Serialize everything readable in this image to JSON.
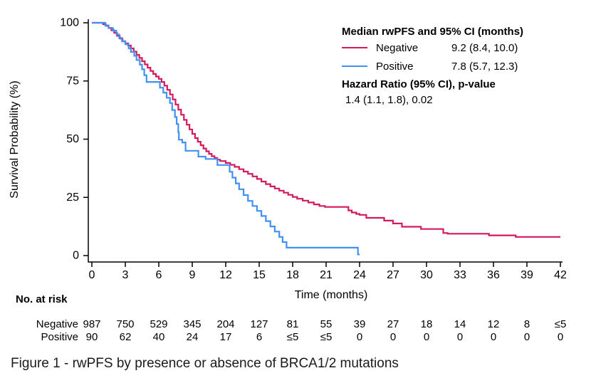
{
  "figure": {
    "caption": "Figure 1 - rwPFS by presence or absence of BRCA1/2 mutations"
  },
  "chart_data": {
    "type": "line",
    "subtype": "kaplan-meier-step-curve",
    "title": "",
    "xlabel": "Time (months)",
    "ylabel": "Survival Probability (%)",
    "xlim": [
      0,
      42
    ],
    "ylim": [
      0,
      100
    ],
    "xticks": [
      0,
      3,
      6,
      9,
      12,
      15,
      18,
      21,
      24,
      27,
      30,
      33,
      36,
      39,
      42
    ],
    "yticks": [
      0,
      25,
      50,
      75,
      100
    ],
    "grid": false,
    "legend_position": "top-right",
    "legend": {
      "title": "Median rwPFS and 95% CI (months)",
      "hr_title": "Hazard Ratio (95% CI), p-value",
      "hr_value": "1.4 (1.1, 1.8), 0.02"
    },
    "series": [
      {
        "name": "Negative",
        "median_ci": "9.2 (8.4, 10.0)",
        "color": "#D5195F",
        "end_time": 42,
        "points": [
          [
            0,
            100
          ],
          [
            1,
            99.4
          ],
          [
            1.25,
            98.7
          ],
          [
            1.5,
            97.8
          ],
          [
            1.75,
            96.8
          ],
          [
            2,
            95.7
          ],
          [
            2.25,
            94.4
          ],
          [
            2.5,
            93.2
          ],
          [
            2.75,
            92.1
          ],
          [
            3,
            91.2
          ],
          [
            3.25,
            90.2
          ],
          [
            3.5,
            89
          ],
          [
            3.75,
            87.6
          ],
          [
            4,
            86.2
          ],
          [
            4.25,
            84.9
          ],
          [
            4.5,
            83.5
          ],
          [
            4.75,
            82.1
          ],
          [
            5,
            80.7
          ],
          [
            5.25,
            79.3
          ],
          [
            5.5,
            78
          ],
          [
            5.75,
            76.9
          ],
          [
            6,
            75.9
          ],
          [
            6.25,
            74.6
          ],
          [
            6.5,
            73
          ],
          [
            6.75,
            71.2
          ],
          [
            7,
            69.2
          ],
          [
            7.25,
            67.1
          ],
          [
            7.5,
            64.9
          ],
          [
            7.75,
            62.7
          ],
          [
            8,
            60.5
          ],
          [
            8.25,
            58.3
          ],
          [
            8.5,
            56.2
          ],
          [
            8.75,
            54.2
          ],
          [
            9,
            52.3
          ],
          [
            9.25,
            50.5
          ],
          [
            9.5,
            48.9
          ],
          [
            9.75,
            47.4
          ],
          [
            10,
            46
          ],
          [
            10.25,
            44.8
          ],
          [
            10.5,
            43.7
          ],
          [
            10.75,
            42.7
          ],
          [
            11,
            41.9
          ],
          [
            11.25,
            41.2
          ],
          [
            11.5,
            40.6
          ],
          [
            12,
            39.8
          ],
          [
            12.4,
            39
          ],
          [
            12.8,
            38.1
          ],
          [
            13.2,
            37.1
          ],
          [
            13.6,
            36.1
          ],
          [
            14,
            35.1
          ],
          [
            14.4,
            34
          ],
          [
            14.8,
            32.9
          ],
          [
            15.2,
            31.8
          ],
          [
            15.6,
            30.7
          ],
          [
            16,
            29.7
          ],
          [
            16.4,
            28.8
          ],
          [
            16.8,
            27.9
          ],
          [
            17.2,
            27
          ],
          [
            17.6,
            26.1
          ],
          [
            18,
            25.2
          ],
          [
            18.4,
            24.4
          ],
          [
            18.9,
            23.6
          ],
          [
            19.4,
            22.8
          ],
          [
            19.9,
            22
          ],
          [
            20.4,
            21.3
          ],
          [
            20.9,
            20.9
          ],
          [
            23,
            19.4
          ],
          [
            23.3,
            18.5
          ],
          [
            23.7,
            17.9
          ],
          [
            24,
            17.5
          ],
          [
            24.6,
            16.2
          ],
          [
            26.2,
            15
          ],
          [
            27,
            13.8
          ],
          [
            27.8,
            12.4
          ],
          [
            29.5,
            11.4
          ],
          [
            31.5,
            9.7
          ],
          [
            31.9,
            9.4
          ],
          [
            35.6,
            8.7
          ],
          [
            38,
            8
          ]
        ]
      },
      {
        "name": "Positive",
        "median_ci": "7.8 (5.7, 12.3)",
        "color": "#4191F1",
        "end_time": 24,
        "points": [
          [
            0,
            100
          ],
          [
            1.2,
            98.9
          ],
          [
            1.5,
            97.7
          ],
          [
            1.9,
            96.6
          ],
          [
            2.2,
            95
          ],
          [
            2.45,
            93.5
          ],
          [
            2.7,
            92
          ],
          [
            3,
            90.8
          ],
          [
            3.3,
            89
          ],
          [
            3.5,
            87.5
          ],
          [
            3.8,
            85.8
          ],
          [
            4,
            84
          ],
          [
            4.3,
            82
          ],
          [
            4.5,
            80
          ],
          [
            4.7,
            77.5
          ],
          [
            4.9,
            74.6
          ],
          [
            6.1,
            72.1
          ],
          [
            6.4,
            70
          ],
          [
            6.7,
            67.8
          ],
          [
            7,
            65.5
          ],
          [
            7.2,
            62.5
          ],
          [
            7.45,
            59.5
          ],
          [
            7.6,
            56.5
          ],
          [
            7.75,
            53
          ],
          [
            7.8,
            49.8
          ],
          [
            8.1,
            48.6
          ],
          [
            8.4,
            45
          ],
          [
            9.55,
            42.5
          ],
          [
            10.2,
            41.5
          ],
          [
            11.25,
            38.9
          ],
          [
            12.35,
            36
          ],
          [
            12.6,
            33.5
          ],
          [
            12.9,
            31
          ],
          [
            13.2,
            28.5
          ],
          [
            13.6,
            26
          ],
          [
            14,
            23.5
          ],
          [
            14.4,
            21.3
          ],
          [
            14.8,
            19.2
          ],
          [
            15.2,
            17
          ],
          [
            15.6,
            14.8
          ],
          [
            16,
            12.5
          ],
          [
            16.4,
            10.3
          ],
          [
            16.8,
            8
          ],
          [
            17.1,
            5.8
          ],
          [
            17.45,
            3.4
          ],
          [
            23.85,
            0.5
          ]
        ]
      }
    ],
    "at_risk": {
      "title": "No. at risk",
      "times": [
        0,
        3,
        6,
        9,
        12,
        15,
        18,
        21,
        24,
        27,
        30,
        33,
        36,
        39,
        42
      ],
      "rows": [
        {
          "label": "Negative",
          "counts": [
            "987",
            "750",
            "529",
            "345",
            "204",
            "127",
            "81",
            "55",
            "39",
            "27",
            "18",
            "14",
            "12",
            "8",
            "≤5"
          ]
        },
        {
          "label": "Positive",
          "counts": [
            "90",
            "62",
            "40",
            "24",
            "17",
            "6",
            "≤5",
            "≤5",
            "0",
            "0",
            "0",
            "0",
            "0",
            "0",
            "0"
          ]
        }
      ]
    }
  }
}
